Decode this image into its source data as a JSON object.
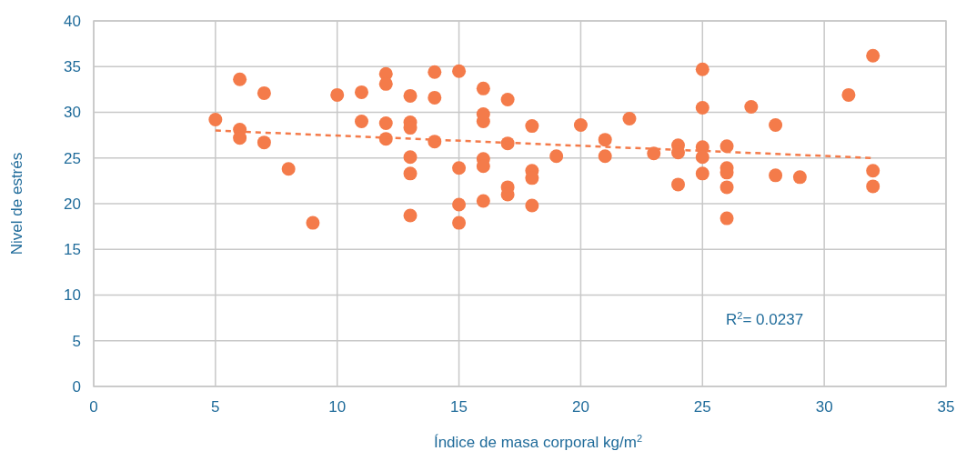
{
  "chart_data": {
    "type": "scatter",
    "xlabel": "Índice de masa corporal kg/m$^{2}$",
    "ylabel": "Nivel de estrés",
    "annotations": [
      "R$^{2}$= 0.0237"
    ],
    "xlim": [
      0,
      35
    ],
    "xticks": [
      0,
      5,
      10,
      15,
      20,
      25,
      30,
      35
    ],
    "ylim": [
      0,
      40
    ],
    "yticks": [
      0,
      5,
      10,
      15,
      20,
      25,
      30,
      35,
      40
    ],
    "grid": true,
    "series": [
      {
        "marker": "circle",
        "color": "#f47b4a",
        "x": [
          5,
          6,
          6,
          6,
          7,
          7,
          8,
          9,
          10,
          11,
          11,
          12,
          12,
          12,
          12,
          13,
          13,
          13,
          13,
          13,
          13,
          14,
          14,
          14,
          15,
          15,
          15,
          15,
          16,
          16,
          16,
          16,
          16,
          16,
          17,
          17,
          17,
          17,
          18,
          18,
          18,
          18,
          19,
          20,
          21,
          21,
          22,
          23,
          24,
          24,
          24,
          25,
          25,
          25,
          25,
          25,
          26,
          26,
          26,
          26,
          26,
          27,
          28,
          28,
          29,
          31,
          32,
          32,
          32
        ],
        "values": [
          29.2,
          33.6,
          28.1,
          27.2,
          32.1,
          26.7,
          23.8,
          17.9,
          31.9,
          32.2,
          29.0,
          34.2,
          33.1,
          28.8,
          27.1,
          31.8,
          28.9,
          28.3,
          25.1,
          23.3,
          18.7,
          34.4,
          31.6,
          26.8,
          34.5,
          23.9,
          19.9,
          17.9,
          32.6,
          29.8,
          29.0,
          24.9,
          24.1,
          20.3,
          31.4,
          26.6,
          21.8,
          21.0,
          28.5,
          23.6,
          22.8,
          19.8,
          25.2,
          28.6,
          27.0,
          25.2,
          29.3,
          25.5,
          26.4,
          25.6,
          22.1,
          34.7,
          30.5,
          26.2,
          25.1,
          23.3,
          26.3,
          23.9,
          23.4,
          21.8,
          18.4,
          30.6,
          28.6,
          23.1,
          22.9,
          31.9,
          36.2,
          23.6,
          21.9
        ]
      },
      {
        "type": "line",
        "color": "#f47b4a",
        "line_style": "dashed",
        "x": [
          5,
          32
        ],
        "values": [
          28.0,
          25.0
        ]
      }
    ]
  }
}
